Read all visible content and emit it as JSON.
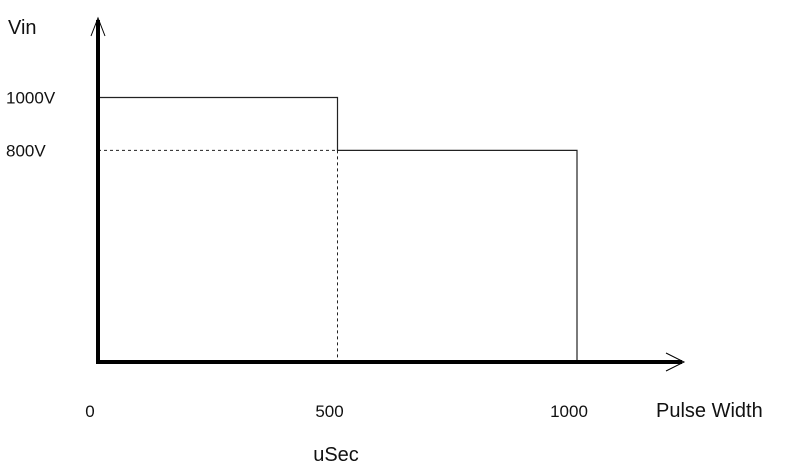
{
  "chart_data": {
    "type": "line",
    "title": "",
    "ylabel": "Vin",
    "xlabel": "Pulse Width",
    "xunit": "uSec",
    "y_ticks": [
      {
        "value": 1000,
        "label": "1000V"
      },
      {
        "value": 800,
        "label": "800V"
      }
    ],
    "x_ticks": [
      {
        "value": 0,
        "label": "0"
      },
      {
        "value": 500,
        "label": "500"
      },
      {
        "value": 1000,
        "label": "1000"
      }
    ],
    "xlim": [
      0,
      1250
    ],
    "ylim": [
      0,
      1250
    ],
    "grid": false,
    "series": [
      {
        "x": [
          0,
          0,
          500,
          500,
          1000,
          1000
        ],
        "y": [
          0,
          1000,
          1000,
          800,
          800,
          0
        ]
      }
    ],
    "reference_lines": [
      {
        "from": [
          0,
          800
        ],
        "to": [
          500,
          800
        ],
        "style": "dashed"
      },
      {
        "from": [
          500,
          800
        ],
        "to": [
          500,
          0
        ],
        "style": "dashed"
      }
    ]
  }
}
